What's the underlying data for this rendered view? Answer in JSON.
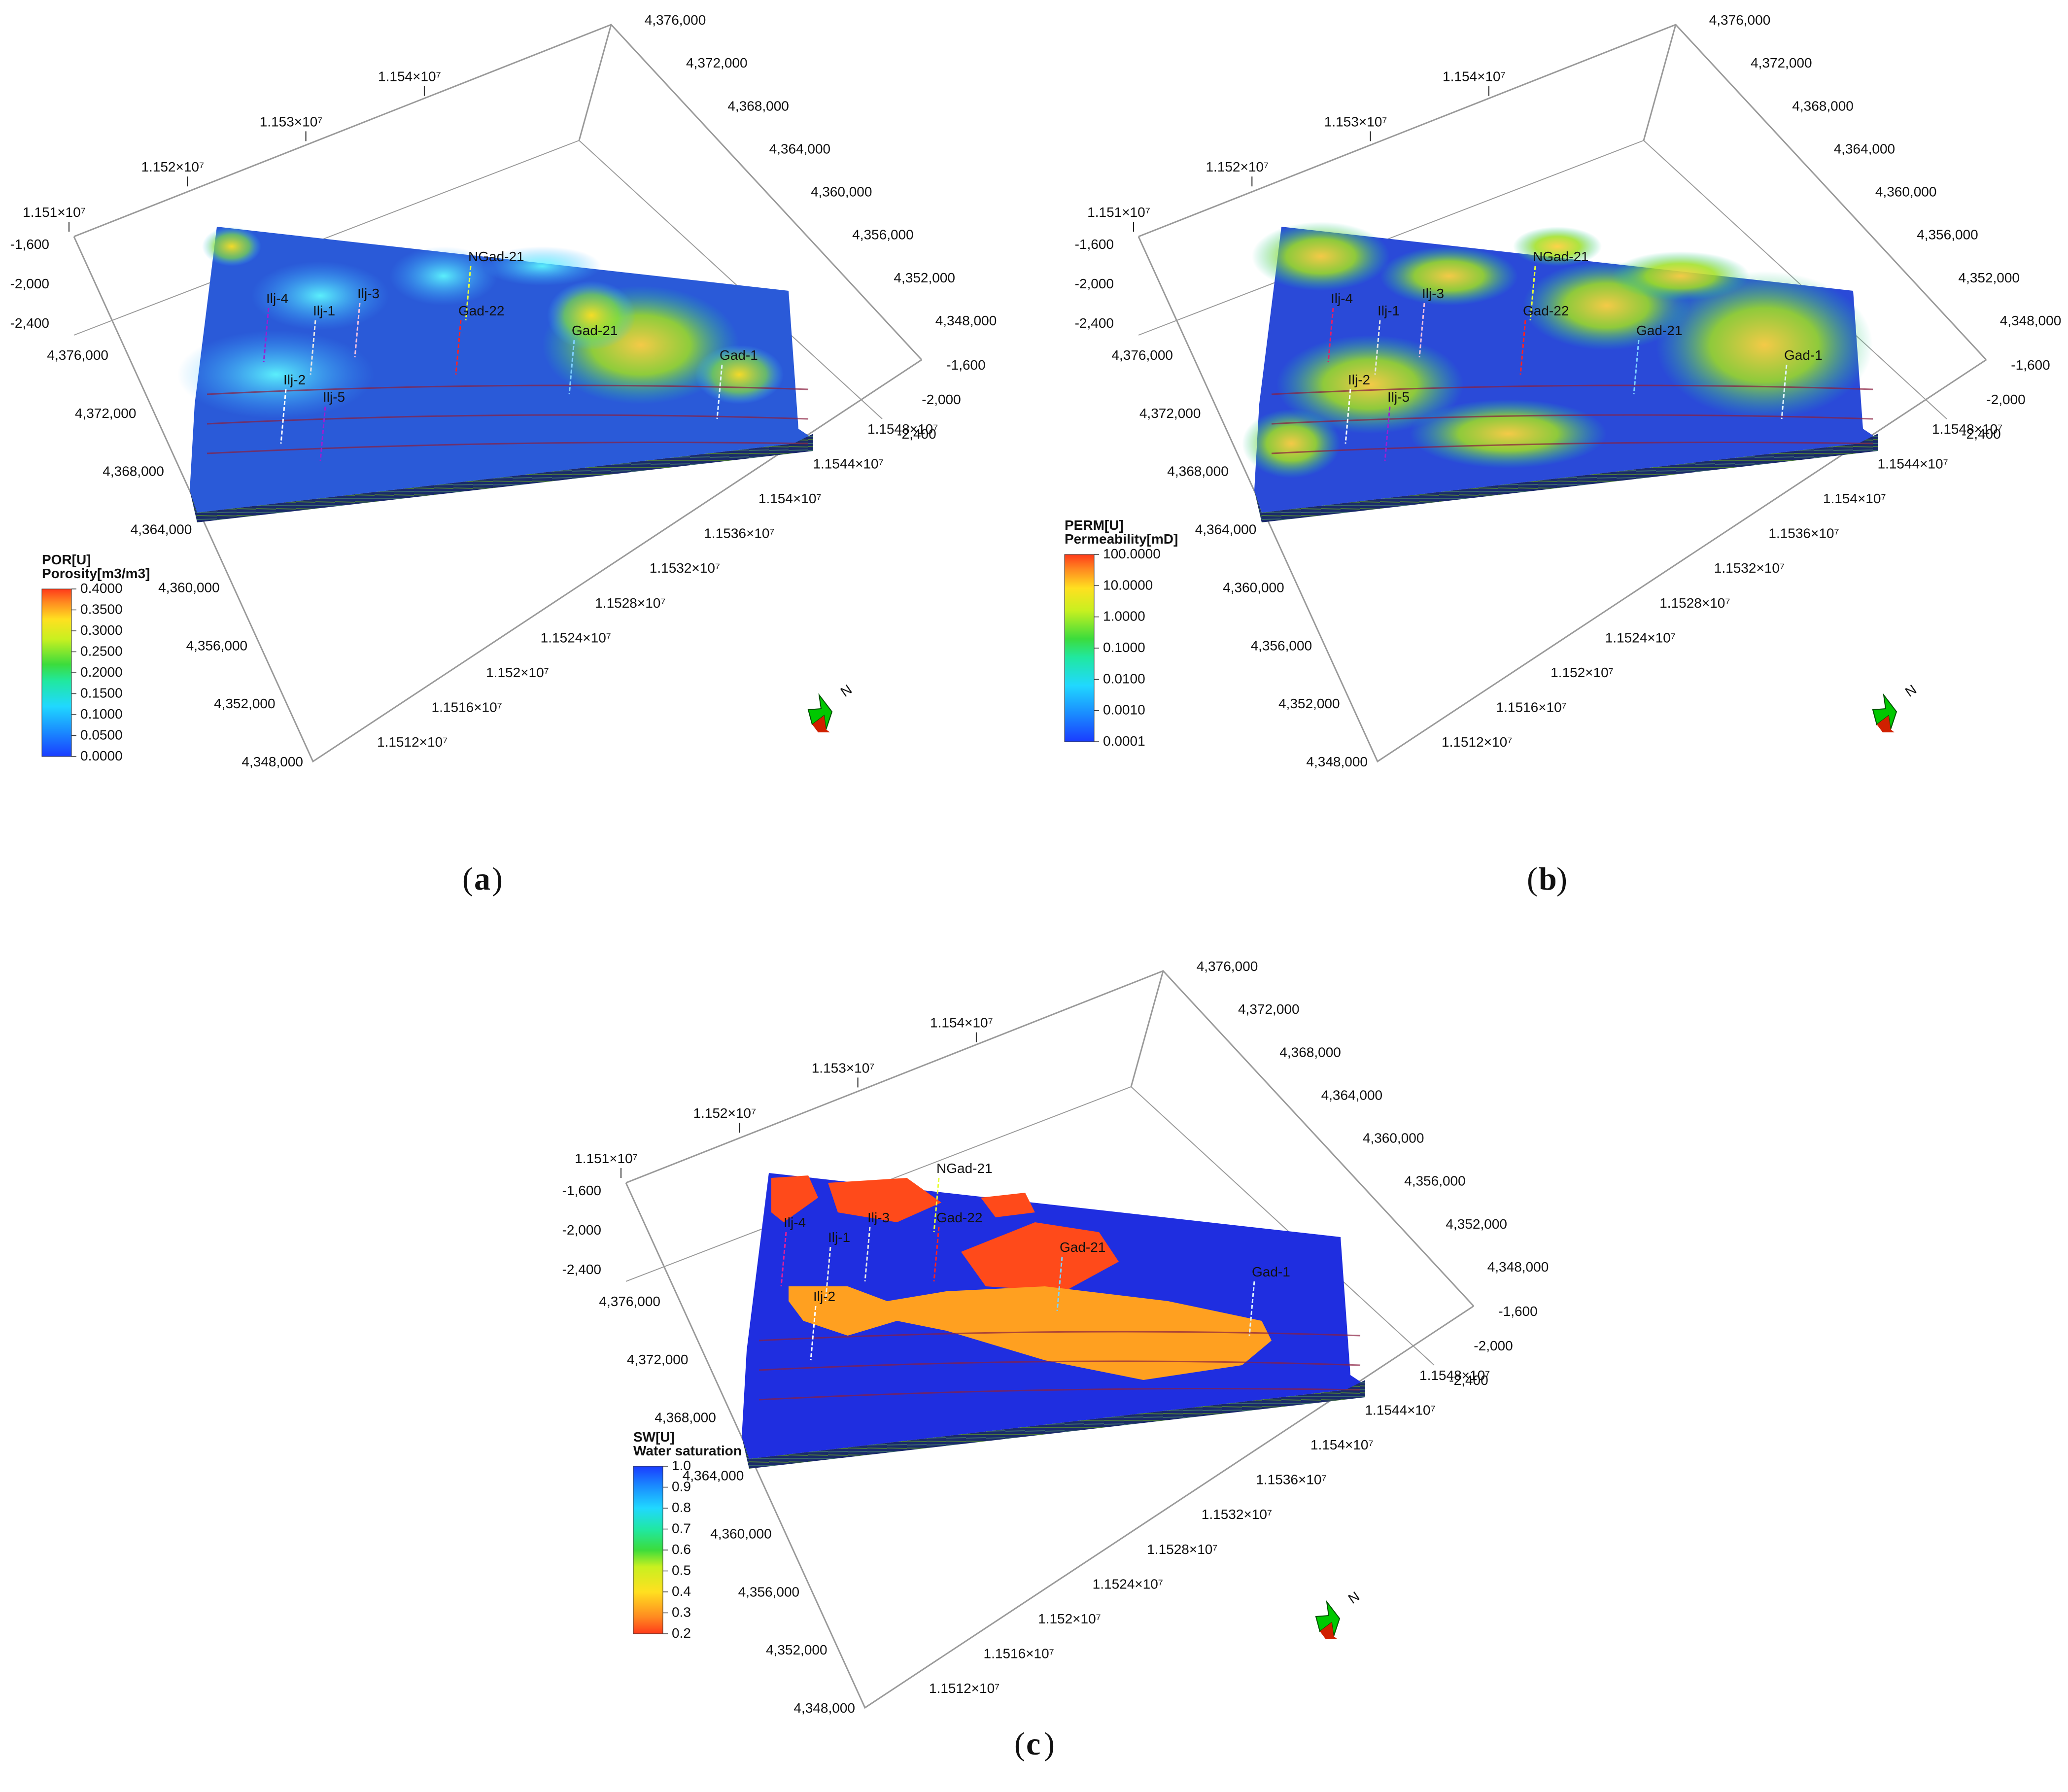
{
  "panels": [
    {
      "id": "a",
      "caption_letter": "a",
      "x_axis_ticks": [
        "1.1512×10⁷",
        "1.1516×10⁷",
        "1.152×10⁷",
        "1.1524×10⁷",
        "1.1528×10⁷",
        "1.1532×10⁷",
        "1.1536×10⁷",
        "1.154×10⁷",
        "1.1544×10⁷",
        "1.1548×10⁷"
      ],
      "y_axis_ticks_left": [
        "4,348,000",
        "4,352,000",
        "4,356,000",
        "4,360,000",
        "4,364,000",
        "4,368,000",
        "4,372,000",
        "4,376,000"
      ],
      "y_axis_ticks_right": [
        "4,348,000",
        "4,352,000",
        "4,356,000",
        "4,360,000",
        "4,364,000",
        "4,368,000",
        "4,372,000",
        "4,376,000"
      ],
      "top_x_ticks": [
        "1.151×10⁷",
        "1.152×10⁷",
        "1.153×10⁷",
        "1.154×10⁷"
      ],
      "z_ticks_left": [
        "-1,600",
        "-2,000",
        "-2,400"
      ],
      "z_ticks_right": [
        "-1,600",
        "-2,000",
        "-2,400"
      ],
      "wells": [
        {
          "name": "Ilj-4",
          "color": "#9b1fd1"
        },
        {
          "name": "Ilj-1",
          "color": "#e6e6e6"
        },
        {
          "name": "Ilj-3",
          "color": "#f0c0e0"
        },
        {
          "name": "NGad-21",
          "color": "#e8ff3a"
        },
        {
          "name": "Gad-22",
          "color": "#ff2222"
        },
        {
          "name": "Gad-21",
          "color": "#7fd0ff"
        },
        {
          "name": "Gad-1",
          "color": "#e0f4ff"
        },
        {
          "name": "Ilj-2",
          "color": "#ffffff"
        },
        {
          "name": "Ilj-5",
          "color": "#9b1fd1"
        }
      ],
      "legend": {
        "title": "POR[U]",
        "subtitle": "Porosity[m3/m3]",
        "values": [
          "0.4000",
          "0.3500",
          "0.3000",
          "0.2500",
          "0.2000",
          "0.1500",
          "0.1000",
          "0.0500",
          "0.0000"
        ]
      },
      "north_label": "N"
    },
    {
      "id": "b",
      "caption_letter": "b",
      "x_axis_ticks": [
        "1.1512×10⁷",
        "1.1516×10⁷",
        "1.152×10⁷",
        "1.1524×10⁷",
        "1.1528×10⁷",
        "1.1532×10⁷",
        "1.1536×10⁷",
        "1.154×10⁷",
        "1.1544×10⁷",
        "1.1548×10⁷"
      ],
      "y_axis_ticks_left": [
        "4,348,000",
        "4,352,000",
        "4,356,000",
        "4,360,000",
        "4,364,000",
        "4,368,000",
        "4,372,000",
        "4,376,000"
      ],
      "y_axis_ticks_right": [
        "4,348,000",
        "4,352,000",
        "4,356,000",
        "4,360,000",
        "4,364,000",
        "4,368,000",
        "4,372,000",
        "4,376,000"
      ],
      "top_x_ticks": [
        "1.151×10⁷",
        "1.152×10⁷",
        "1.153×10⁷",
        "1.154×10⁷"
      ],
      "z_ticks_left": [
        "-1,600",
        "-2,000",
        "-2,400"
      ],
      "z_ticks_right": [
        "-1,600",
        "-2,000",
        "-2,400"
      ],
      "wells": [
        {
          "name": "Ilj-4",
          "color": "#e01f6a"
        },
        {
          "name": "Ilj-1",
          "color": "#e6e6e6"
        },
        {
          "name": "Ilj-3",
          "color": "#f0c0e0"
        },
        {
          "name": "NGad-21",
          "color": "#e8ff3a"
        },
        {
          "name": "Gad-22",
          "color": "#ff2222"
        },
        {
          "name": "Gad-21",
          "color": "#7fd0ff"
        },
        {
          "name": "Gad-1",
          "color": "#e0f4ff"
        },
        {
          "name": "Ilj-2",
          "color": "#ffffff"
        },
        {
          "name": "Ilj-5",
          "color": "#9b1fd1"
        }
      ],
      "legend": {
        "title": "PERM[U]",
        "subtitle": "Permeability[mD]",
        "values": [
          "100.0000",
          "10.0000",
          "1.0000",
          "0.1000",
          "0.0100",
          "0.0010",
          "0.0001"
        ]
      },
      "north_label": "N"
    },
    {
      "id": "c",
      "caption_letter": "c",
      "x_axis_ticks": [
        "1.1512×10⁷",
        "1.1516×10⁷",
        "1.152×10⁷",
        "1.1524×10⁷",
        "1.1528×10⁷",
        "1.1532×10⁷",
        "1.1536×10⁷",
        "1.154×10⁷",
        "1.1544×10⁷",
        "1.1548×10⁷"
      ],
      "y_axis_ticks_left": [
        "4,348,000",
        "4,352,000",
        "4,356,000",
        "4,360,000",
        "4,364,000",
        "4,368,000",
        "4,372,000",
        "4,376,000"
      ],
      "y_axis_ticks_right": [
        "4,348,000",
        "4,352,000",
        "4,356,000",
        "4,360,000",
        "4,364,000",
        "4,368,000",
        "4,372,000",
        "4,376,000"
      ],
      "top_x_ticks": [
        "1.151×10⁷",
        "1.152×10⁷",
        "1.153×10⁷",
        "1.154×10⁷"
      ],
      "z_ticks_left": [
        "-1,600",
        "-2,000",
        "-2,400"
      ],
      "z_ticks_right": [
        "-1,600",
        "-2,000",
        "-2,400"
      ],
      "wells": [
        {
          "name": "Ilj-4",
          "color": "#e01f9a"
        },
        {
          "name": "Ilj-1",
          "color": "#e6e6e6"
        },
        {
          "name": "Ilj-3",
          "color": "#e6e6e6"
        },
        {
          "name": "NGad-21",
          "color": "#e8ff3a"
        },
        {
          "name": "Gad-22",
          "color": "#ff2222"
        },
        {
          "name": "Gad-21",
          "color": "#7fd0ff"
        },
        {
          "name": "Gad-1",
          "color": "#e0f4ff"
        },
        {
          "name": "Ilj-2",
          "color": "#ffffff"
        }
      ],
      "legend": {
        "title": "SW[U]",
        "subtitle": "Water saturation",
        "values": [
          "1.0",
          "0.9",
          "0.8",
          "0.7",
          "0.6",
          "0.5",
          "0.4",
          "0.3",
          "0.2"
        ]
      },
      "north_label": "N"
    }
  ],
  "colors": {
    "porosity_bg": "#2a5ad8",
    "perm_bg": "#2a4ad8",
    "sw_bg": "#1f2ee0",
    "sw_gas": "#ff4a1a",
    "sw_oil": "#ffa020",
    "box_line": "#9a9a9a"
  }
}
